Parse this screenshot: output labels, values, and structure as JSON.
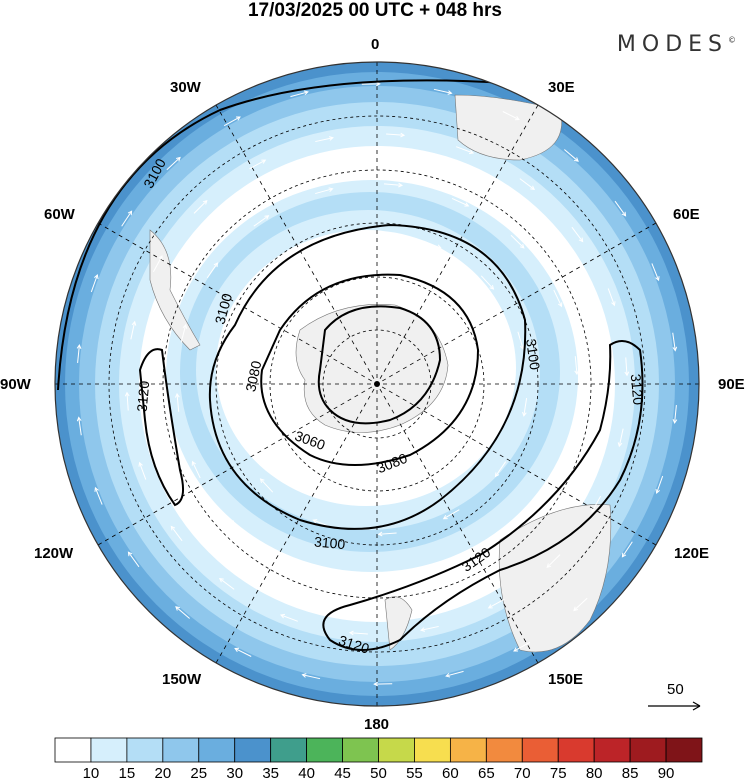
{
  "title": "17/03/2025  00 UTC  + 048 hrs",
  "brand": "MODES",
  "brand_mark": "©",
  "longitude_labels": {
    "lon_0": "0",
    "lon_30e": "30E",
    "lon_60e": "60E",
    "lon_90e": "90E",
    "lon_120e": "120E",
    "lon_150e": "150E",
    "lon_180": "180",
    "lon_150w": "150W",
    "lon_120w": "120W",
    "lon_90w": "90W",
    "lon_60w": "60W",
    "lon_30w": "30W"
  },
  "contours": [
    "3060",
    "3080",
    "3100",
    "3120"
  ],
  "contour_labels": [
    {
      "text": "3100"
    },
    {
      "text": "3100"
    },
    {
      "text": "3080"
    },
    {
      "text": "3060"
    },
    {
      "text": "3080"
    },
    {
      "text": "3100"
    },
    {
      "text": "3120"
    },
    {
      "text": "3120"
    },
    {
      "text": "3120"
    },
    {
      "text": "3100"
    },
    {
      "text": "3120"
    }
  ],
  "reference_vector": "50",
  "colorbar": {
    "ticks": [
      "10",
      "15",
      "20",
      "25",
      "30",
      "35",
      "40",
      "45",
      "50",
      "55",
      "60",
      "65",
      "70",
      "75",
      "80",
      "85",
      "90"
    ],
    "colors": [
      "#ffffff",
      "#d6effc",
      "#b4def6",
      "#8fc7ec",
      "#6aaedf",
      "#4b92cc",
      "#3f9e8c",
      "#4cb45a",
      "#7ec450",
      "#c6d94a",
      "#f7de4f",
      "#f6b347",
      "#f28a3e",
      "#ea5e35",
      "#d93a2e",
      "#bc2428",
      "#9e1b1f",
      "#7f1418"
    ]
  },
  "colors": {
    "contour": "#000000",
    "graticule": "#000000",
    "land": "#f0f0f0"
  }
}
